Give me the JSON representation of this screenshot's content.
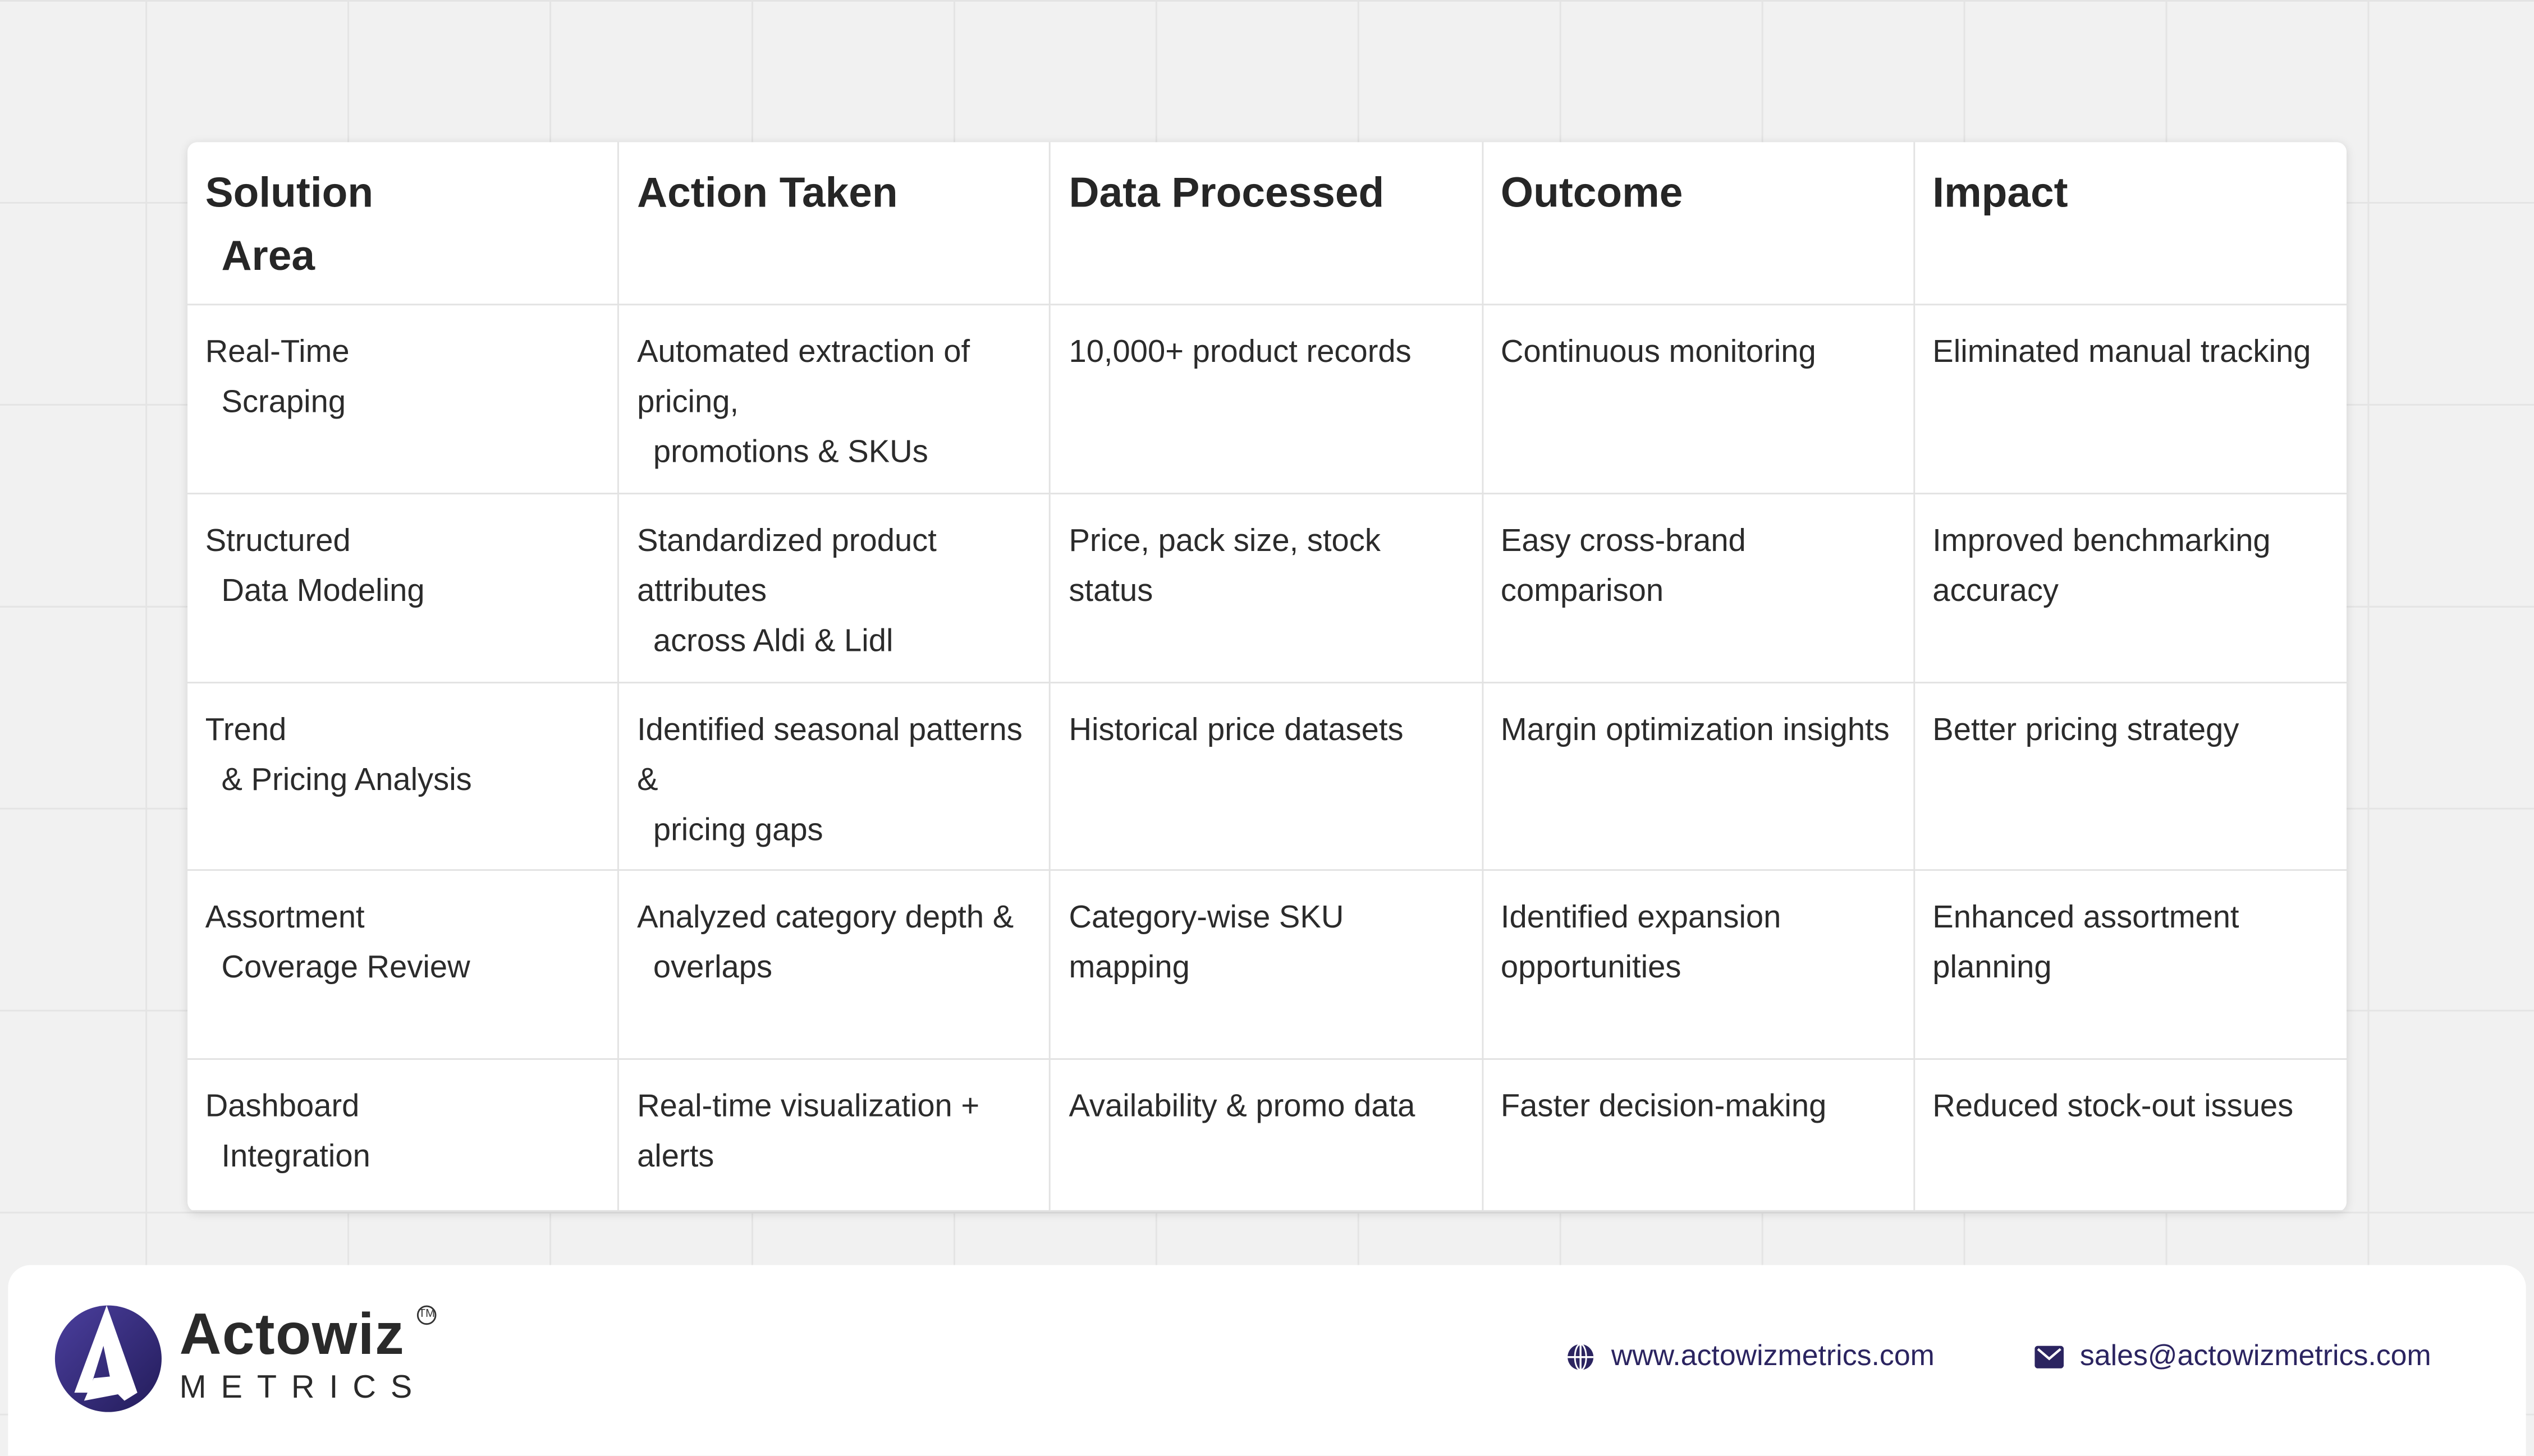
{
  "table": {
    "headers": [
      [
        "Solution",
        "Area"
      ],
      [
        "Action Taken"
      ],
      [
        "Data Processed"
      ],
      [
        "Outcome"
      ],
      [
        "Impact"
      ]
    ],
    "rows": [
      [
        [
          "Real-Time",
          "Scraping"
        ],
        [
          "Automated extraction of pricing,",
          "promotions & SKUs"
        ],
        [
          "10,000+ product records"
        ],
        [
          "Continuous monitoring"
        ],
        [
          "Eliminated manual tracking"
        ]
      ],
      [
        [
          "Structured",
          "Data Modeling"
        ],
        [
          "Standardized product attributes",
          "across Aldi & Lidl"
        ],
        [
          "Price, pack size, stock status"
        ],
        [
          "Easy cross-brand comparison"
        ],
        [
          "Improved benchmarking accuracy"
        ]
      ],
      [
        [
          "Trend",
          "& Pricing Analysis"
        ],
        [
          "Identified seasonal patterns &",
          "pricing gaps"
        ],
        [
          "Historical price datasets"
        ],
        [
          "Margin optimization insights"
        ],
        [
          "Better pricing strategy"
        ]
      ],
      [
        [
          "Assortment",
          "Coverage Review"
        ],
        [
          "Analyzed category depth &",
          "overlaps"
        ],
        [
          "Category-wise SKU mapping"
        ],
        [
          "Identified expansion opportunities"
        ],
        [
          "Enhanced assortment planning"
        ]
      ],
      [
        [
          "Dashboard",
          "Integration"
        ],
        [
          "Real-time visualization + alerts"
        ],
        [
          "Availability & promo data"
        ],
        [
          "Faster decision-making"
        ],
        [
          "Reduced stock-out issues"
        ]
      ]
    ]
  },
  "footer": {
    "brand": "Actowiz",
    "tm": "TM",
    "sub": "METRICS",
    "website": "www.actowizmetrics.com",
    "email": "sales@actowizmetrics.com",
    "website_icon": "globe-icon",
    "email_icon": "mail-icon",
    "brand_color": "#2b2460"
  }
}
